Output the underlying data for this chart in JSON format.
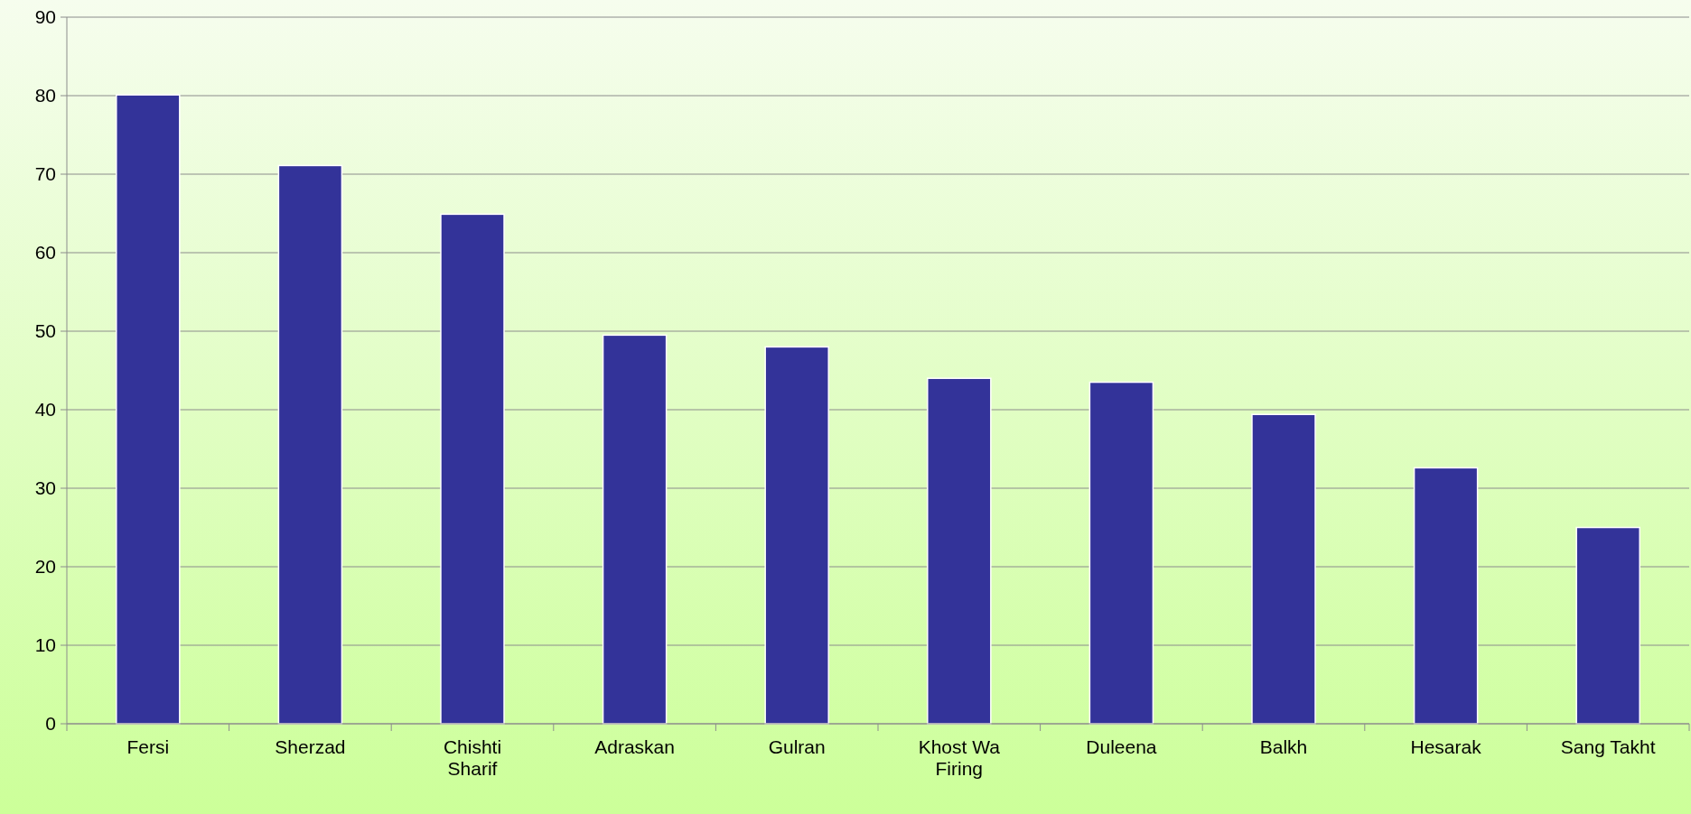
{
  "chart_data": {
    "type": "bar",
    "categories": [
      "Fersi",
      "Sherzad",
      "Chishti Sharif",
      "Adraskan",
      "Gulran",
      "Khost Wa Firing",
      "Duleena",
      "Balkh",
      "Hesarak",
      "Sang Takht"
    ],
    "values": [
      80.1,
      71.1,
      64.9,
      49.5,
      48.0,
      44.0,
      43.5,
      39.4,
      32.6,
      25.0
    ],
    "color": "#333399",
    "ylim": [
      0,
      90
    ],
    "yticks": [
      0,
      10,
      20,
      30,
      40,
      50,
      60,
      70,
      80,
      90
    ],
    "grid": "y"
  }
}
